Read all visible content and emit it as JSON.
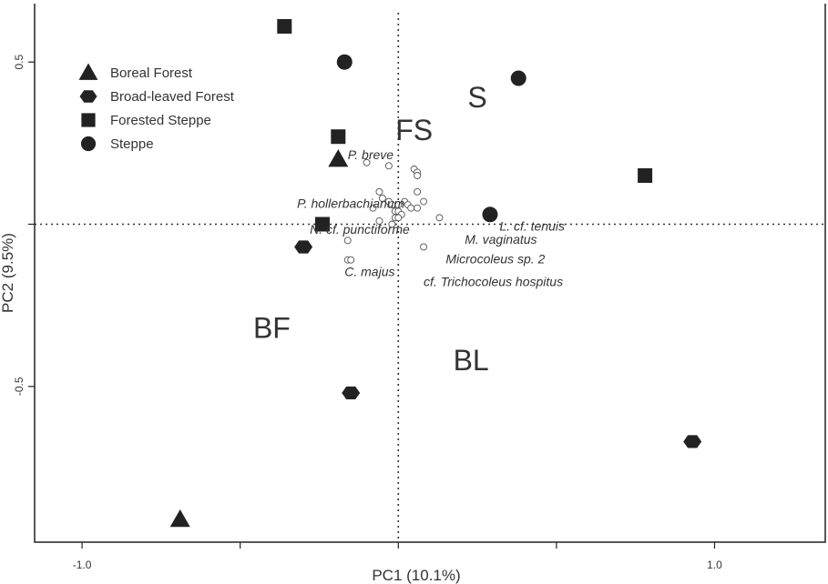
{
  "chart_data": {
    "type": "scatter",
    "xlabel": "PC1 (10.1%)",
    "ylabel": "PC2 (9.5%)",
    "xlim": [
      -1.15,
      1.35
    ],
    "ylim": [
      -0.98,
      0.68
    ],
    "x_ticks": [
      {
        "value": -1.0,
        "label": "-1.0"
      },
      {
        "value": -0.5,
        "label": ""
      },
      {
        "value": 0.0,
        "label": ""
      },
      {
        "value": 0.5,
        "label": ""
      },
      {
        "value": 1.0,
        "label": "1.0"
      }
    ],
    "y_ticks": [
      {
        "value": 0.5,
        "label": "0.5"
      },
      {
        "value": 0.0,
        "label": ""
      },
      {
        "value": -0.5,
        "label": "-0.5"
      }
    ],
    "reference_lines": {
      "x": 0.0,
      "y": 0.0,
      "style": "dotted"
    },
    "legend": {
      "placement": "top-left",
      "entries": [
        {
          "label": "Boreal Forest",
          "marker": "triangle"
        },
        {
          "label": "Broad-leaved Forest",
          "marker": "hexagon"
        },
        {
          "label": "Forested Steppe",
          "marker": "square"
        },
        {
          "label": "Steppe",
          "marker": "circle"
        }
      ]
    },
    "series": [
      {
        "name": "Boreal Forest",
        "marker": "triangle",
        "points": [
          [
            -0.19,
            0.2
          ],
          [
            -0.69,
            -0.91
          ]
        ]
      },
      {
        "name": "Broad-leaved Forest",
        "marker": "hexagon",
        "points": [
          [
            -0.3,
            -0.07
          ],
          [
            -0.15,
            -0.52
          ],
          [
            0.93,
            -0.67
          ]
        ]
      },
      {
        "name": "Forested Steppe",
        "marker": "square",
        "points": [
          [
            -0.36,
            0.61
          ],
          [
            -0.19,
            0.27
          ],
          [
            -0.24,
            0.0
          ],
          [
            0.78,
            0.15
          ]
        ]
      },
      {
        "name": "Steppe",
        "marker": "circle",
        "points": [
          [
            -0.17,
            0.5
          ],
          [
            0.38,
            0.45
          ],
          [
            0.29,
            0.03
          ]
        ]
      }
    ],
    "species_points": [
      [
        -0.1,
        0.19
      ],
      [
        -0.03,
        0.18
      ],
      [
        0.05,
        0.17
      ],
      [
        0.06,
        0.16
      ],
      [
        0.06,
        0.15
      ],
      [
        -0.06,
        0.1
      ],
      [
        -0.05,
        0.08
      ],
      [
        -0.03,
        0.07
      ],
      [
        -0.02,
        0.06
      ],
      [
        0.0,
        0.06
      ],
      [
        0.02,
        0.07
      ],
      [
        0.03,
        0.06
      ],
      [
        0.04,
        0.05
      ],
      [
        0.06,
        0.05
      ],
      [
        0.06,
        0.1
      ],
      [
        0.08,
        0.07
      ],
      [
        -0.08,
        0.05
      ],
      [
        -0.01,
        0.04
      ],
      [
        0.0,
        0.04
      ],
      [
        0.01,
        0.03
      ],
      [
        -0.06,
        0.01
      ],
      [
        -0.01,
        0.02
      ],
      [
        0.0,
        0.02
      ],
      [
        -0.02,
        0.0
      ],
      [
        0.13,
        0.02
      ],
      [
        -0.16,
        -0.05
      ],
      [
        0.08,
        -0.07
      ],
      [
        -0.16,
        -0.11
      ],
      [
        -0.15,
        -0.11
      ]
    ],
    "species_labels": [
      {
        "text": "P. breve",
        "x": -0.16,
        "y": 0.2
      },
      {
        "text": "P. hollerbachianum",
        "x": -0.32,
        "y": 0.05
      },
      {
        "text": "N. cf. punctiforme",
        "x": -0.28,
        "y": -0.03
      },
      {
        "text": "L. cf. tenuis",
        "x": 0.32,
        "y": -0.02
      },
      {
        "text": "M. vaginatus",
        "x": 0.21,
        "y": -0.06
      },
      {
        "text": "Microcoleus sp. 2",
        "x": 0.15,
        "y": -0.12
      },
      {
        "text": "C. majus",
        "x": -0.17,
        "y": -0.16
      },
      {
        "text": "cf. Trichocoleus hospitus",
        "x": 0.08,
        "y": -0.19
      }
    ],
    "region_labels": [
      {
        "text": "S",
        "x": 0.25,
        "y": 0.36
      },
      {
        "text": "FS",
        "x": 0.05,
        "y": 0.26
      },
      {
        "text": "BF",
        "x": -0.4,
        "y": -0.35
      },
      {
        "text": "BL",
        "x": 0.23,
        "y": -0.45
      }
    ]
  }
}
